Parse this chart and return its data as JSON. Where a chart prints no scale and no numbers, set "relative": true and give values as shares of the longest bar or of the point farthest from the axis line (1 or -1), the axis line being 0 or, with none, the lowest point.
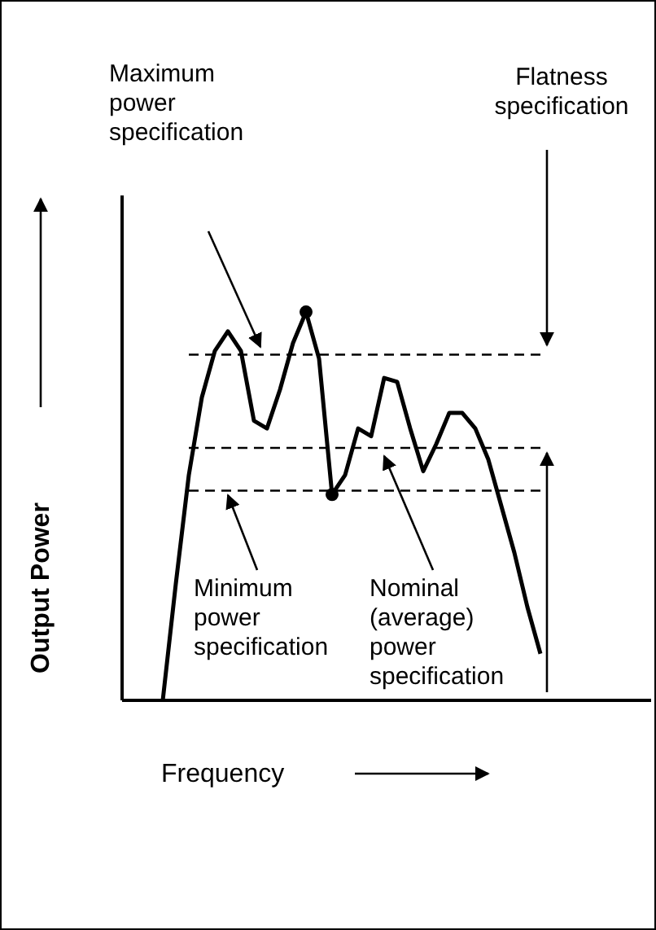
{
  "chart_data": {
    "type": "line",
    "relative": true,
    "xlabel": "Frequency",
    "ylabel": "Output Power",
    "categories": [
      null,
      null,
      null,
      null,
      null,
      null,
      null,
      null,
      null,
      null,
      null,
      null,
      null,
      null,
      null,
      null,
      null,
      null,
      null,
      null,
      null,
      null,
      null,
      null,
      null,
      null,
      null,
      null,
      null,
      null
    ],
    "series": [
      {
        "color": "#000000",
        "values": [
          0,
          0.3,
          0.58,
          0.78,
          0.9,
          0.95,
          0.9,
          0.72,
          0.7,
          0.8,
          0.92,
          1.0,
          0.88,
          0.53,
          0.58,
          0.7,
          0.68,
          0.83,
          0.82,
          0.7,
          0.59,
          0.66,
          0.74,
          0.74,
          0.7,
          0.62,
          0.5,
          0.38,
          0.24,
          0.12
        ]
      }
    ],
    "ref_lines": [
      {
        "axis": "y",
        "value": 0.89,
        "line_style": "dashed",
        "color": "#000000"
      },
      {
        "axis": "y",
        "value": 0.65,
        "line_style": "dashed",
        "color": "#000000"
      },
      {
        "axis": "y",
        "value": 0.54,
        "line_style": "dashed",
        "color": "#000000"
      }
    ],
    "annotations": [
      "Maximum power specification",
      "Flatness specification",
      "Minimum power specification",
      "Nominal (average) power specification"
    ]
  }
}
